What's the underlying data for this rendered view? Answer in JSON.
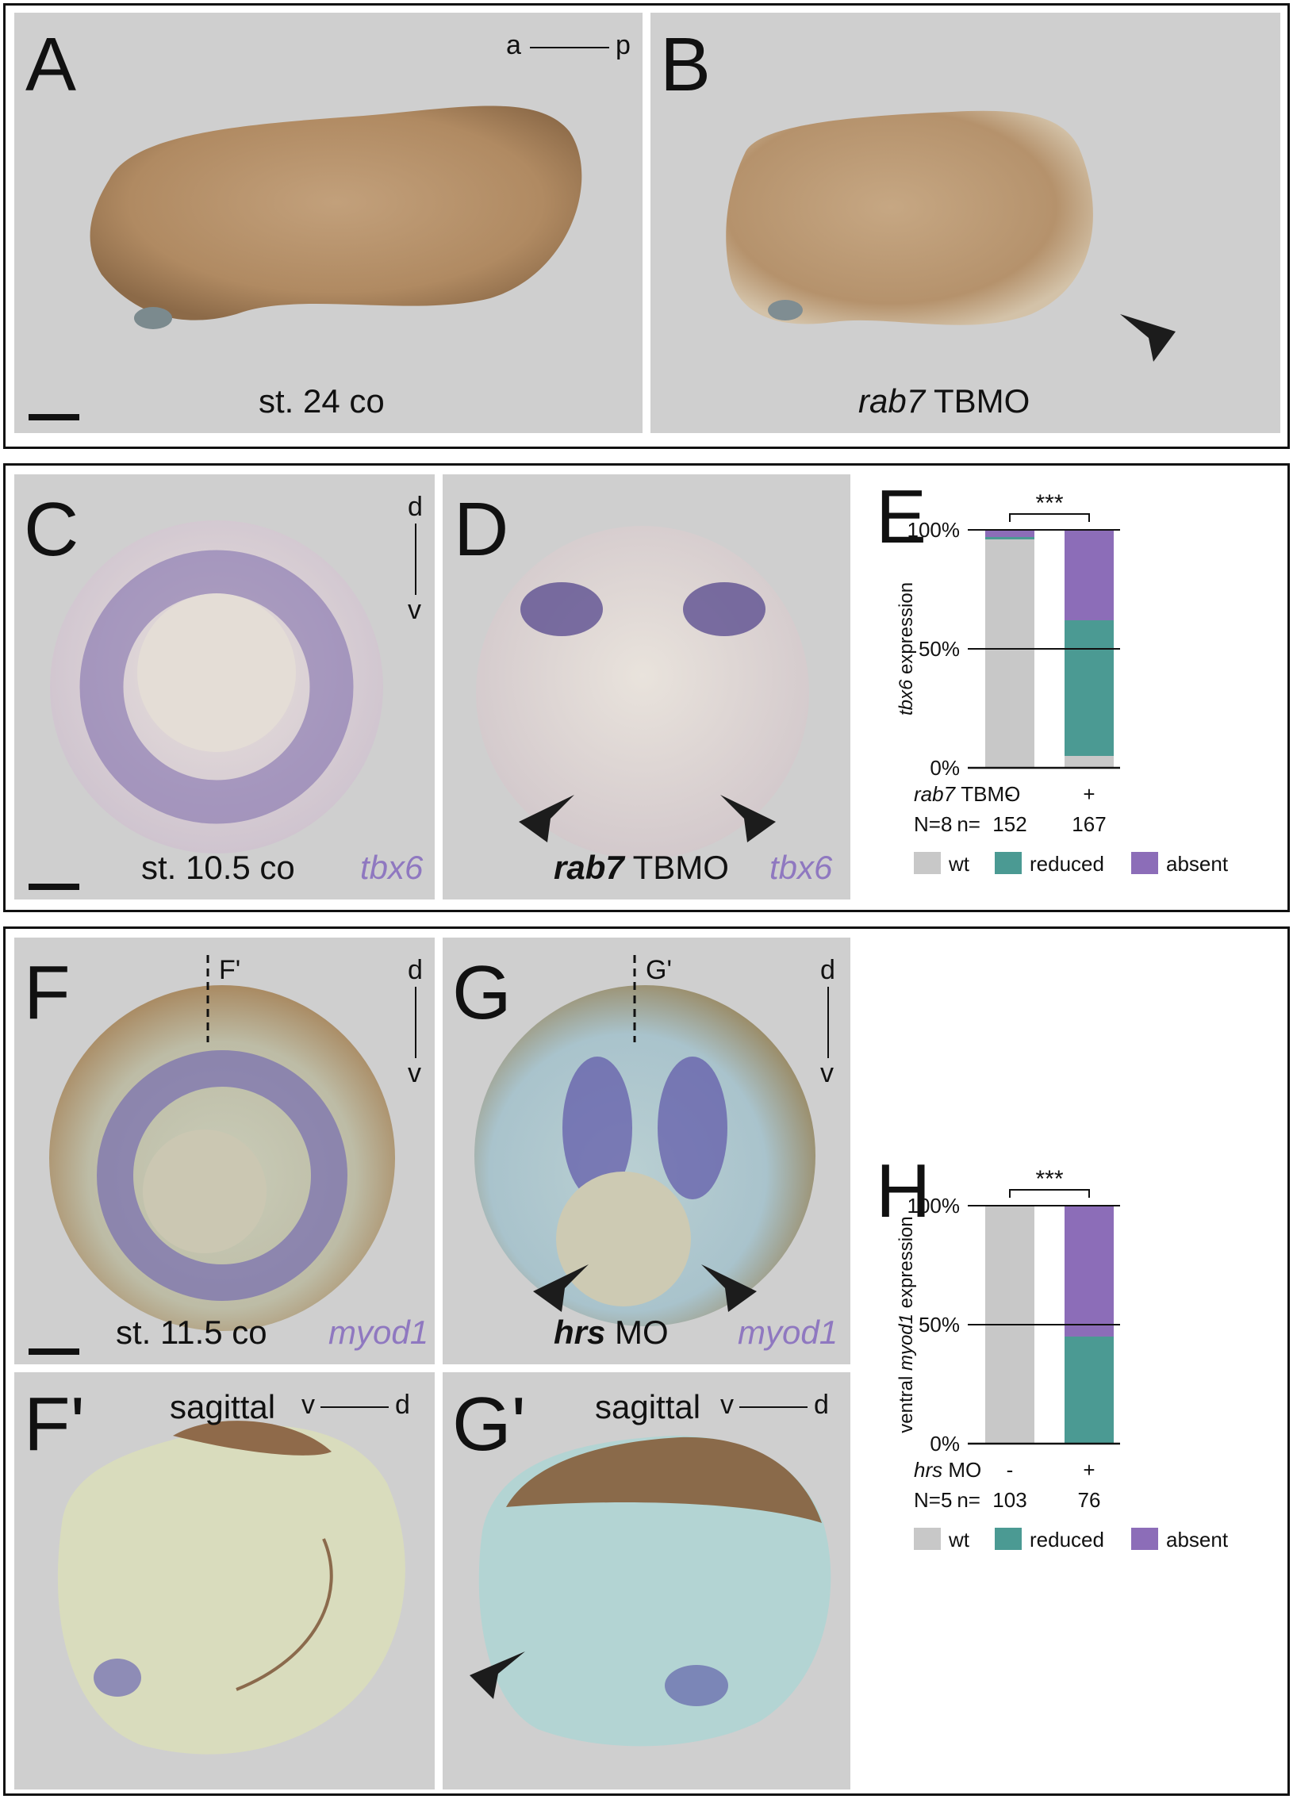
{
  "panels": {
    "A": {
      "label": "A",
      "caption": "st. 24 co",
      "axis_left": "a",
      "axis_right": "p"
    },
    "B": {
      "label": "B",
      "caption_gene": "rab7",
      "caption_rest": "TBMO"
    },
    "C": {
      "label": "C",
      "caption": "st. 10.5 co",
      "gene": "tbx6",
      "axis_top": "d",
      "axis_bottom": "v"
    },
    "D": {
      "label": "D",
      "caption_gene1": "rab7",
      "caption_rest": "TBMO",
      "gene": "tbx6"
    },
    "E": {
      "label": "E"
    },
    "F": {
      "label": "F",
      "caption": "st. 11.5 co",
      "gene": "myod1",
      "axis_top": "d",
      "axis_bottom": "v",
      "section": "F'"
    },
    "G": {
      "label": "G",
      "caption_gene1": "hrs",
      "caption_rest": "MO",
      "gene": "myod1",
      "axis_top": "d",
      "axis_bottom": "v",
      "section": "G'"
    },
    "Fp": {
      "label": "F'",
      "caption": "sagittal",
      "axis_left": "v",
      "axis_right": "d"
    },
    "Gp": {
      "label": "G'",
      "caption": "sagittal",
      "axis_left": "v",
      "axis_right": "d"
    },
    "H": {
      "label": "H"
    }
  },
  "colors": {
    "wt": "#c8c8c8",
    "reduced": "#4b9a93",
    "absent": "#8c6db8",
    "gene": "#8f78c0"
  },
  "chart_data": [
    {
      "panel": "E",
      "type": "bar",
      "stacked": true,
      "ylabel_gene": "tbx6",
      "ylabel_rest": "expression",
      "ytick_labels": [
        "0%",
        "50%",
        "100%"
      ],
      "ylim": [
        0,
        100
      ],
      "significance": "***",
      "condition_gene": "rab7",
      "condition_rest": "TBMO",
      "categories": [
        "-",
        "+"
      ],
      "N_label": "N=8",
      "n_label": "n=",
      "n_values": [
        "152",
        "167"
      ],
      "series": [
        {
          "name": "wt",
          "values": [
            96,
            5
          ]
        },
        {
          "name": "reduced",
          "values": [
            1,
            57
          ]
        },
        {
          "name": "absent",
          "values": [
            3,
            38
          ]
        }
      ],
      "legend": [
        "wt",
        "reduced",
        "absent"
      ]
    },
    {
      "panel": "H",
      "type": "bar",
      "stacked": true,
      "ylabel_pre": "ventral",
      "ylabel_gene": "myod1",
      "ylabel_rest": "expression",
      "ytick_labels": [
        "0%",
        "50%",
        "100%"
      ],
      "ylim": [
        0,
        100
      ],
      "significance": "***",
      "condition_gene": "hrs",
      "condition_rest": "MO",
      "categories": [
        "-",
        "+"
      ],
      "N_label": "N=5",
      "n_label": "n=",
      "n_values": [
        "103",
        "76"
      ],
      "series": [
        {
          "name": "wt",
          "values": [
            100,
            0
          ]
        },
        {
          "name": "reduced",
          "values": [
            0,
            45
          ]
        },
        {
          "name": "absent",
          "values": [
            0,
            55
          ]
        }
      ],
      "legend": [
        "wt",
        "reduced",
        "absent"
      ]
    }
  ]
}
